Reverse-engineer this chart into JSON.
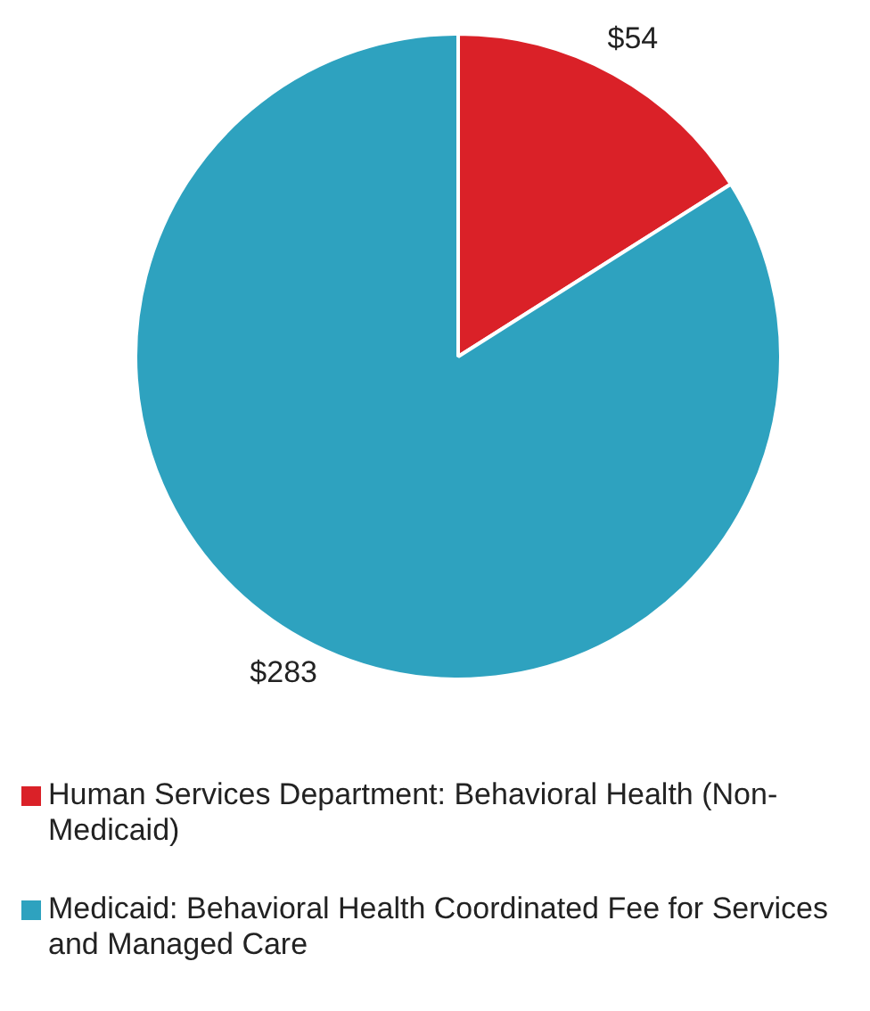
{
  "chart_data": {
    "type": "pie",
    "categories": [
      "Human Services Department:  Behavioral Health (Non-Medicaid)",
      "Medicaid: Behavioral Health Coordinated Fee for Services and Managed Care"
    ],
    "values": [
      54,
      283
    ],
    "colors": [
      "#da2128",
      "#2ea2bf"
    ],
    "value_labels": [
      "$54",
      "$283"
    ],
    "legend": "bottom"
  }
}
